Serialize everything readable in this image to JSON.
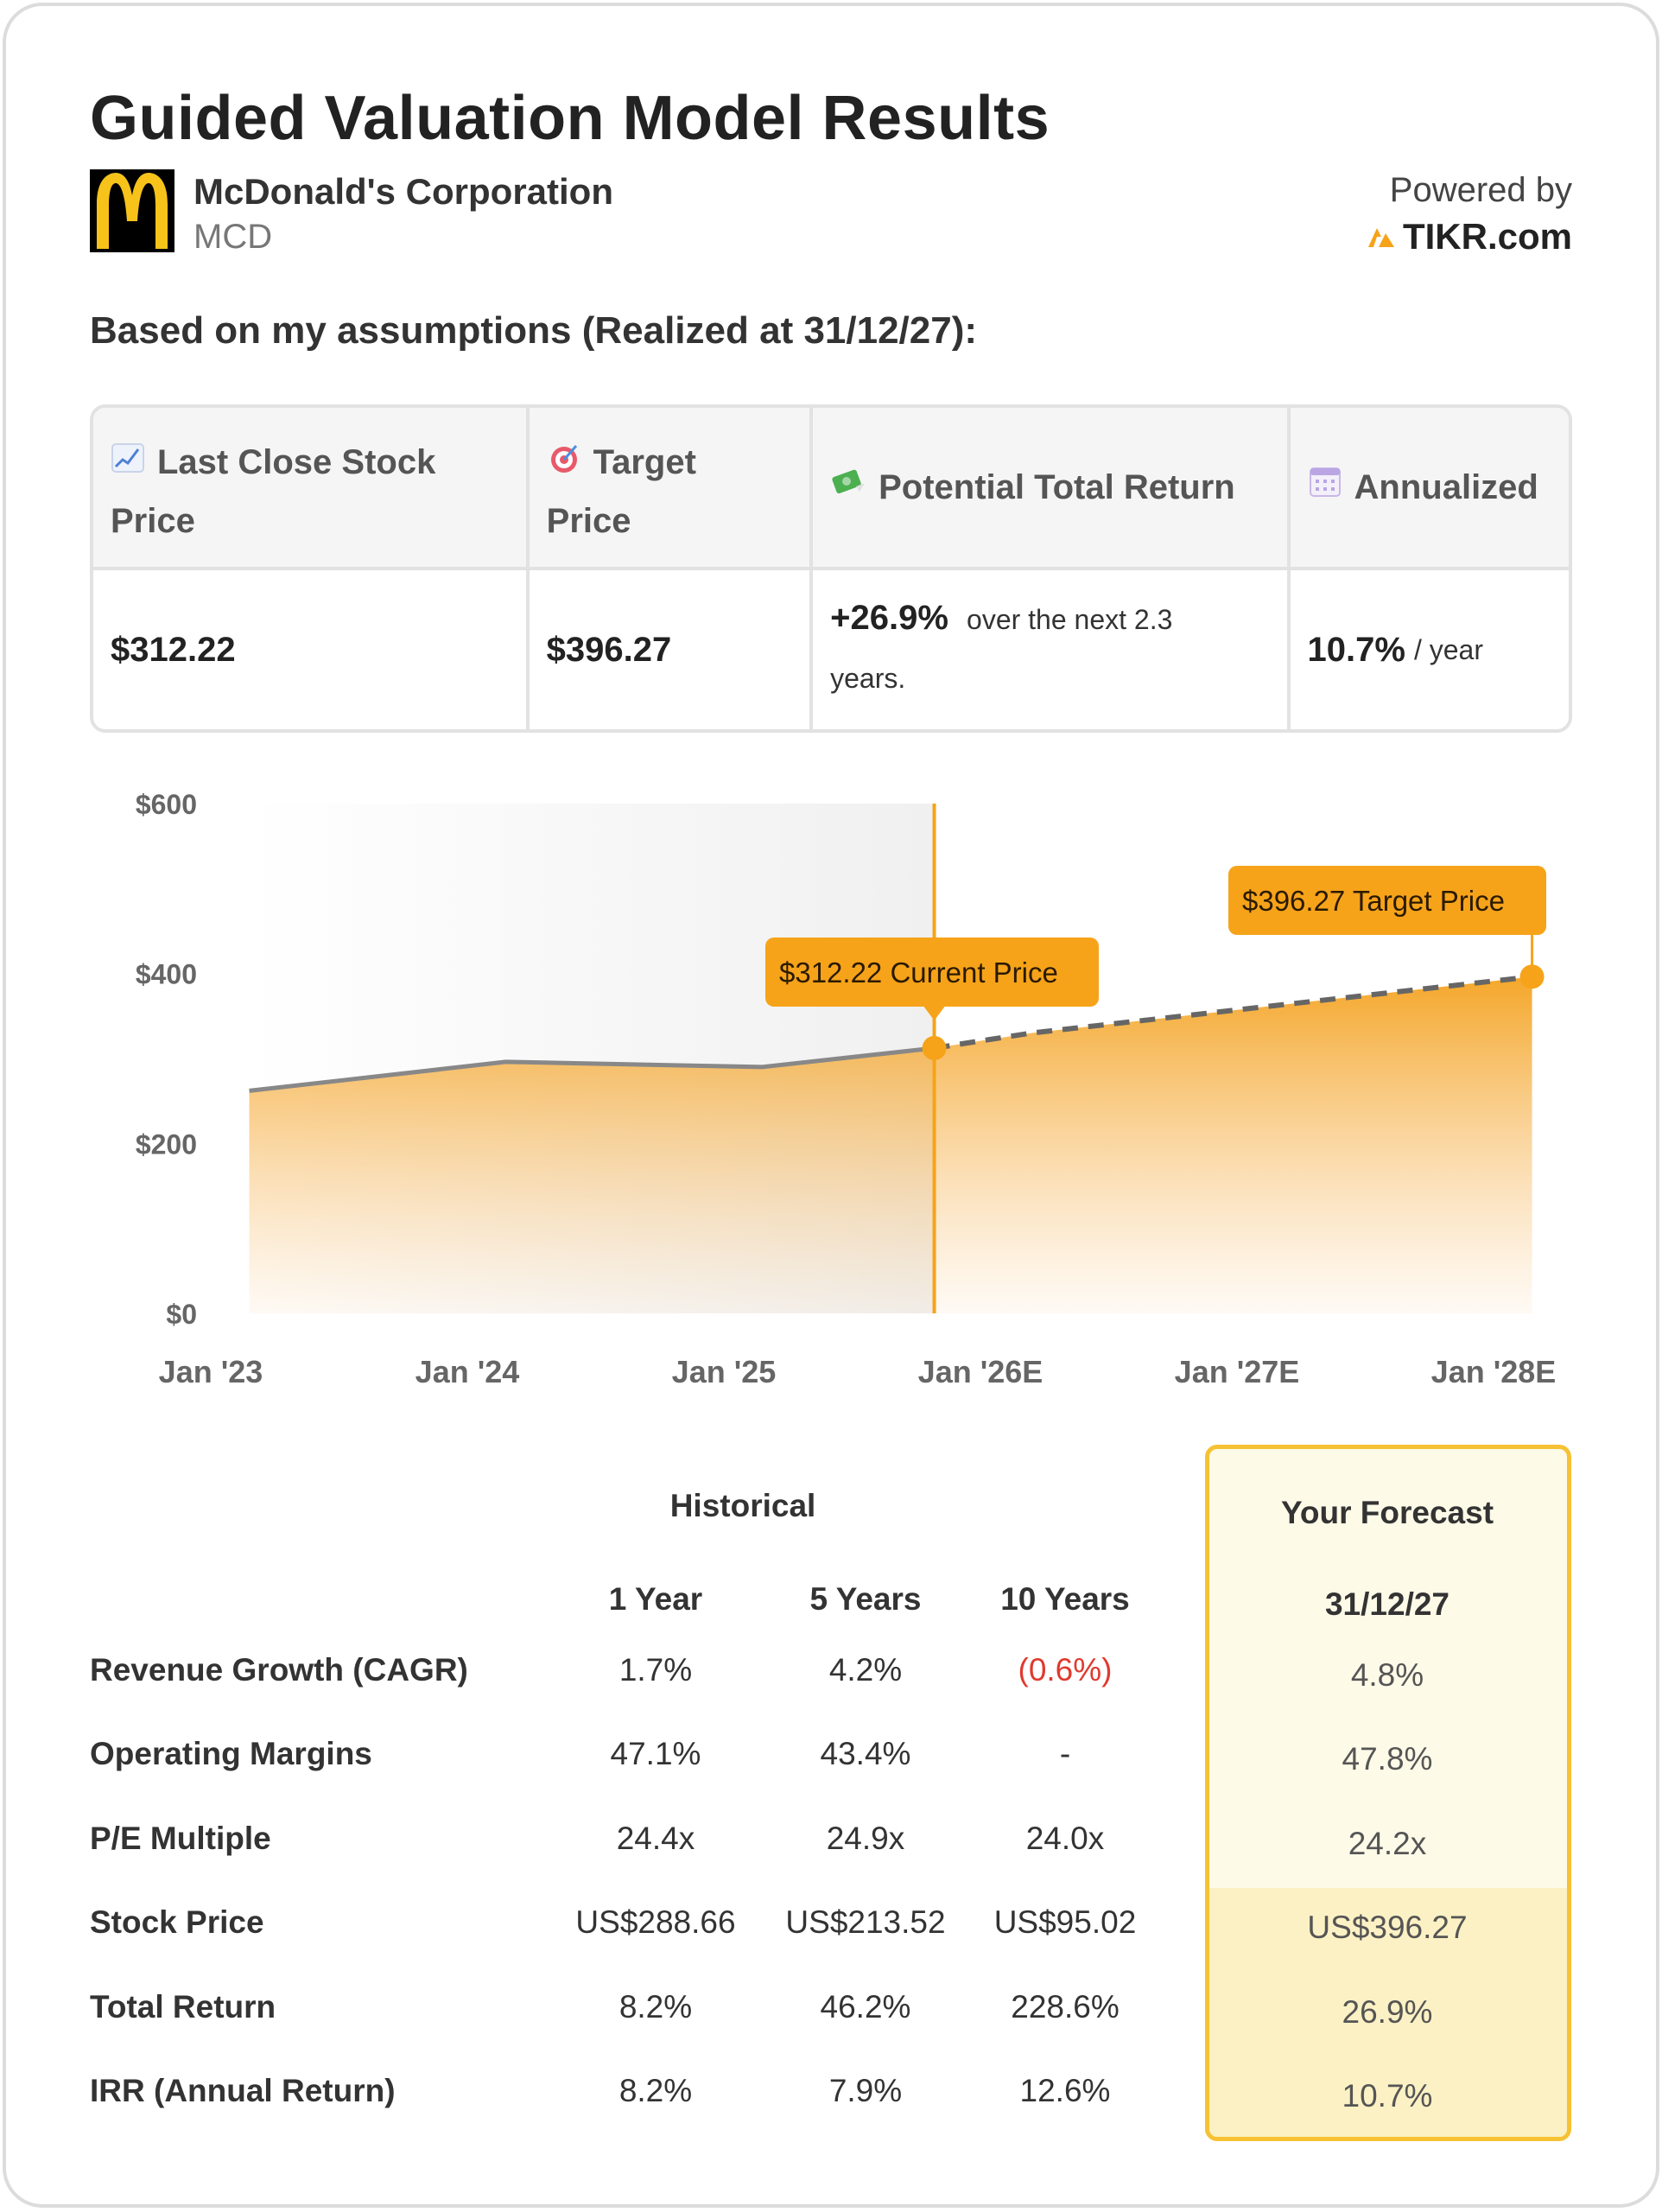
{
  "header": {
    "title": "Guided Valuation Model Results",
    "company_name": "McDonald's Corporation",
    "ticker": "MCD",
    "powered_by": "Powered by",
    "brand": "TIKR.com",
    "subtitle": "Based on my assumptions (Realized at 31/12/27):"
  },
  "colors": {
    "accent": "#f6a31a",
    "highlight_border": "#f6c234",
    "negative": "#e03a2e"
  },
  "summary": {
    "last_close_label_1": "Last Close Stock",
    "last_close_label_2": "Price",
    "target_label_1": "Target",
    "target_label_2": "Price",
    "return_label": "Potential Total Return",
    "annualized_label": "Annualized",
    "last_close_value": "$312.22",
    "target_value": "$396.27",
    "return_value": "+26.9%",
    "return_suffix": "over the next 2.3",
    "return_suffix_2": "years.",
    "annualized_value": "10.7%",
    "annualized_suffix": "/ year"
  },
  "chart_data": {
    "type": "area",
    "y_ticks": [
      "$600",
      "$400",
      "$200",
      "$0"
    ],
    "ylim": [
      0,
      600
    ],
    "x_ticks": [
      "Jan '23",
      "Jan '24",
      "Jan '25",
      "Jan '26E",
      "Jan '27E",
      "Jan '28E"
    ],
    "historical": [
      {
        "t": 0.15,
        "value": 262
      },
      {
        "t": 1.15,
        "value": 296
      },
      {
        "t": 2.15,
        "value": 290
      },
      {
        "t": 2.82,
        "value": 312.22
      }
    ],
    "forecast": [
      {
        "t": 2.82,
        "value": 312.22
      },
      {
        "t": 3.2,
        "value": 330
      },
      {
        "t": 5.15,
        "value": 396.27
      }
    ],
    "current_label": "$312.22 Current Price",
    "target_label": "$396.27 Target Price"
  },
  "table": {
    "historical_label": "Historical",
    "forecast_label": "Your Forecast",
    "columns": [
      "1 Year",
      "5 Years",
      "10 Years"
    ],
    "forecast_date": "31/12/27",
    "rows": [
      {
        "label": "Revenue Growth (CAGR)",
        "values": [
          "1.7%",
          "4.2%",
          "(0.6%)"
        ],
        "forecast": "4.8%"
      },
      {
        "label": "Operating Margins",
        "values": [
          "47.1%",
          "43.4%",
          "-"
        ],
        "forecast": "47.8%"
      },
      {
        "label": "P/E Multiple",
        "values": [
          "24.4x",
          "24.9x",
          "24.0x"
        ],
        "forecast": "24.2x"
      },
      {
        "label": "Stock Price",
        "values": [
          "US$288.66",
          "US$213.52",
          "US$95.02"
        ],
        "forecast": "US$396.27"
      },
      {
        "label": "Total Return",
        "values": [
          "8.2%",
          "46.2%",
          "228.6%"
        ],
        "forecast": "26.9%"
      },
      {
        "label": "IRR (Annual Return)",
        "values": [
          "8.2%",
          "7.9%",
          "12.6%"
        ],
        "forecast": "10.7%"
      }
    ]
  }
}
